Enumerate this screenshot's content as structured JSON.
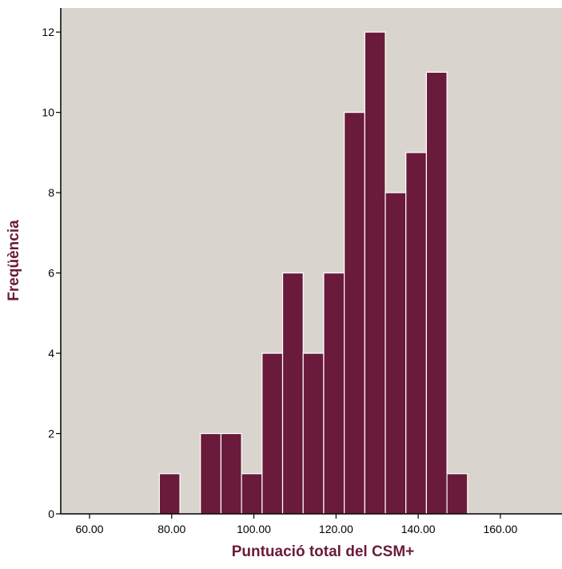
{
  "chart_data": {
    "type": "bar",
    "subtype": "histogram",
    "xlabel": "Puntuació total del CSM+",
    "ylabel": "Freqüència",
    "xlim": [
      53,
      175
    ],
    "ylim": [
      0,
      12.6
    ],
    "x_ticks": [
      "60.00",
      "80.00",
      "100.00",
      "120.00",
      "140.00",
      "160.00"
    ],
    "x_tick_values": [
      60,
      80,
      100,
      120,
      140,
      160
    ],
    "y_ticks": [
      "0",
      "2",
      "4",
      "6",
      "8",
      "10",
      "12"
    ],
    "y_tick_values": [
      0,
      2,
      4,
      6,
      8,
      10,
      12
    ],
    "bin_width": 5,
    "bins": [
      {
        "start": 77,
        "end": 82,
        "count": 1
      },
      {
        "start": 87,
        "end": 92,
        "count": 2
      },
      {
        "start": 92,
        "end": 97,
        "count": 2
      },
      {
        "start": 97,
        "end": 102,
        "count": 1
      },
      {
        "start": 102,
        "end": 107,
        "count": 4
      },
      {
        "start": 107,
        "end": 112,
        "count": 6
      },
      {
        "start": 112,
        "end": 117,
        "count": 4
      },
      {
        "start": 117,
        "end": 122,
        "count": 6
      },
      {
        "start": 122,
        "end": 127,
        "count": 10
      },
      {
        "start": 127,
        "end": 132,
        "count": 12
      },
      {
        "start": 132,
        "end": 137,
        "count": 8
      },
      {
        "start": 137,
        "end": 142,
        "count": 9
      },
      {
        "start": 142,
        "end": 147,
        "count": 11
      },
      {
        "start": 147,
        "end": 152,
        "count": 1
      }
    ],
    "grid": false,
    "legend": "none"
  },
  "colors": {
    "bar_fill": "#6a1a3a",
    "bar_edge": "#ffffff",
    "plot_bg": "#d9d5ce",
    "axis_title": "#6a1a3a"
  }
}
